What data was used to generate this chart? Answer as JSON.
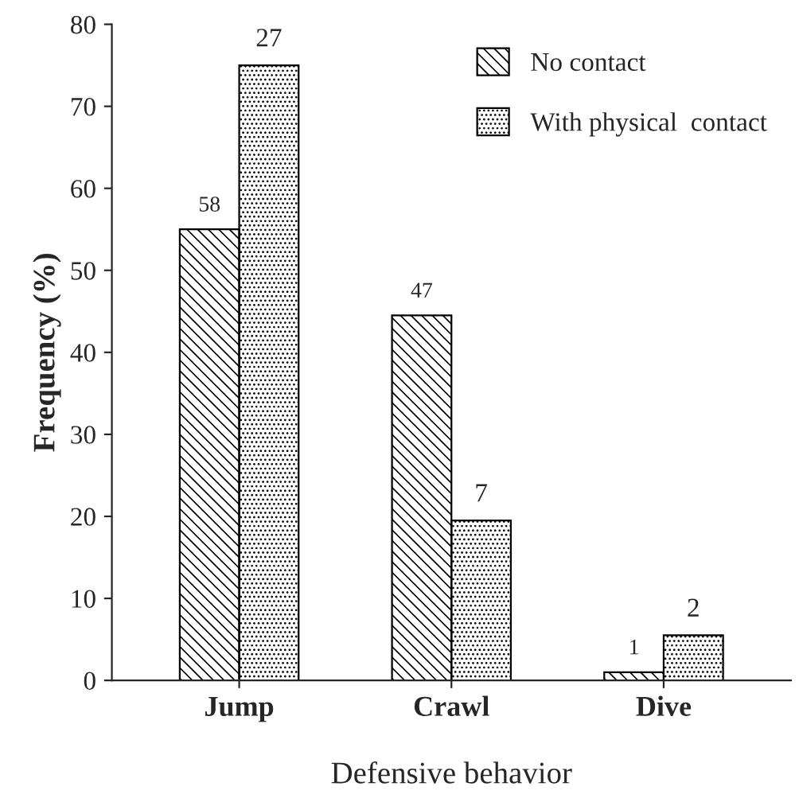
{
  "chart_data": {
    "type": "bar",
    "xlabel": "Defensive behavior",
    "ylabel": "Frequency (%)",
    "categories": [
      "Jump",
      "Crawl",
      "Dive"
    ],
    "series": [
      {
        "name": "No contact",
        "color": "#000000",
        "values": [
          55,
          44.5,
          1
        ]
      },
      {
        "name": "With physical  contact",
        "color": "#000000",
        "values": [
          75,
          19.5,
          5.5
        ]
      }
    ],
    "annotations": [
      "58",
      "47",
      "1",
      "27",
      "7",
      "2"
    ],
    "ylim": [
      0,
      80
    ],
    "yticks": [
      0,
      10,
      20,
      30,
      40,
      50,
      60,
      70,
      80
    ],
    "grid": false,
    "legend": "top right"
  }
}
